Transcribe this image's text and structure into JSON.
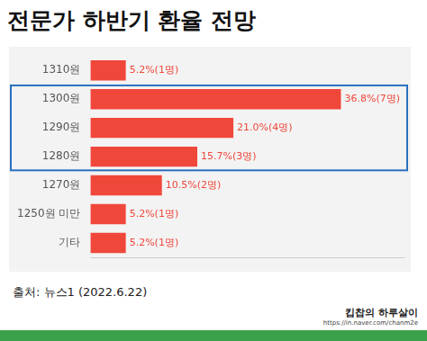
{
  "chart_data": {
    "type": "bar",
    "title": "전문가 하반기 환율 전망",
    "orientation": "horizontal",
    "categories": [
      "1310원",
      "1300원",
      "1290원",
      "1280원",
      "1270원",
      "1250원 미만",
      "기타"
    ],
    "values": [
      5.2,
      36.8,
      21.0,
      15.7,
      10.5,
      5.2,
      5.2
    ],
    "value_labels": [
      "5.2%(1명)",
      "36.8%(7명)",
      "21.0%(4명)",
      "15.7%(3명)",
      "10.5%(2명)",
      "5.2%(1명)",
      "5.2%(1명)"
    ],
    "color": "#f0473b",
    "xlim": [
      0,
      46
    ],
    "grid": false,
    "data_labels": true,
    "tick_labels": "y"
  },
  "footer": {
    "source": "출처: 뉴스1 (2022.6.22)",
    "watermark": "킵찹의 하루살이",
    "url": "https://in.naver.com/chanm2e"
  }
}
